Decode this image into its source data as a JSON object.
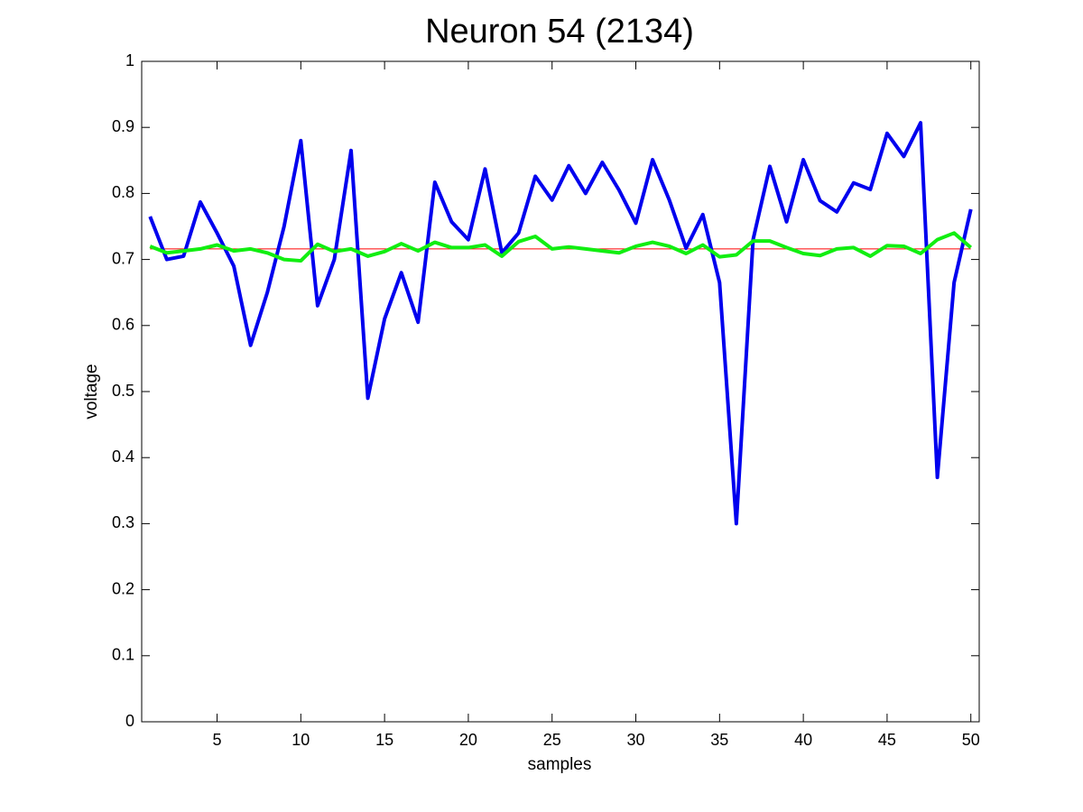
{
  "chart_data": {
    "type": "line",
    "title": "Neuron 54 (2134)",
    "x_label": "samples",
    "y_label": "voltage",
    "x": [
      1,
      2,
      3,
      4,
      5,
      6,
      7,
      8,
      9,
      10,
      11,
      12,
      13,
      14,
      15,
      16,
      17,
      18,
      19,
      20,
      21,
      22,
      23,
      24,
      25,
      26,
      27,
      28,
      29,
      30,
      31,
      32,
      33,
      34,
      35,
      36,
      37,
      38,
      39,
      40,
      41,
      42,
      43,
      44,
      45,
      46,
      47,
      48,
      49,
      50
    ],
    "series": [
      {
        "color": "#ff0000",
        "width": 1,
        "values": [
          0.716,
          0.716,
          0.716,
          0.716,
          0.716,
          0.716,
          0.716,
          0.716,
          0.716,
          0.716,
          0.716,
          0.716,
          0.716,
          0.716,
          0.716,
          0.716,
          0.716,
          0.716,
          0.716,
          0.716,
          0.716,
          0.716,
          0.716,
          0.716,
          0.716,
          0.716,
          0.716,
          0.716,
          0.716,
          0.716,
          0.716,
          0.716,
          0.716,
          0.716,
          0.716,
          0.716,
          0.716,
          0.716,
          0.716,
          0.716,
          0.716,
          0.716,
          0.716,
          0.716,
          0.716,
          0.716,
          0.716,
          0.716,
          0.716,
          0.716
        ]
      },
      {
        "color": "#0000ee",
        "width": 4,
        "values": [
          0.765,
          0.7,
          0.705,
          0.787,
          0.74,
          0.69,
          0.57,
          0.65,
          0.75,
          0.88,
          0.63,
          0.7,
          0.865,
          0.49,
          0.61,
          0.68,
          0.605,
          0.817,
          0.757,
          0.73,
          0.837,
          0.71,
          0.74,
          0.826,
          0.79,
          0.842,
          0.8,
          0.847,
          0.805,
          0.755,
          0.851,
          0.79,
          0.717,
          0.768,
          0.665,
          0.3,
          0.73,
          0.841,
          0.757,
          0.851,
          0.789,
          0.772,
          0.816,
          0.806,
          0.891,
          0.856,
          0.907,
          0.37,
          0.665,
          0.776
        ]
      },
      {
        "color": "#11ee11",
        "width": 4,
        "values": [
          0.72,
          0.71,
          0.713,
          0.716,
          0.722,
          0.713,
          0.716,
          0.71,
          0.7,
          0.698,
          0.723,
          0.712,
          0.716,
          0.705,
          0.712,
          0.724,
          0.713,
          0.726,
          0.718,
          0.718,
          0.722,
          0.705,
          0.727,
          0.735,
          0.716,
          0.719,
          0.716,
          0.713,
          0.71,
          0.72,
          0.726,
          0.72,
          0.709,
          0.722,
          0.704,
          0.707,
          0.728,
          0.728,
          0.718,
          0.709,
          0.706,
          0.716,
          0.718,
          0.705,
          0.721,
          0.72,
          0.709,
          0.73,
          0.74,
          0.718
        ]
      }
    ],
    "xlim": [
      0.5,
      50.5
    ],
    "xticks": [
      5,
      10,
      15,
      20,
      25,
      30,
      35,
      40,
      45,
      50
    ],
    "ylim": [
      0,
      1
    ],
    "yticks": [
      0,
      0.1,
      0.2,
      0.3,
      0.4,
      0.5,
      0.6,
      0.7,
      0.8,
      0.9,
      1
    ],
    "grid": false
  }
}
